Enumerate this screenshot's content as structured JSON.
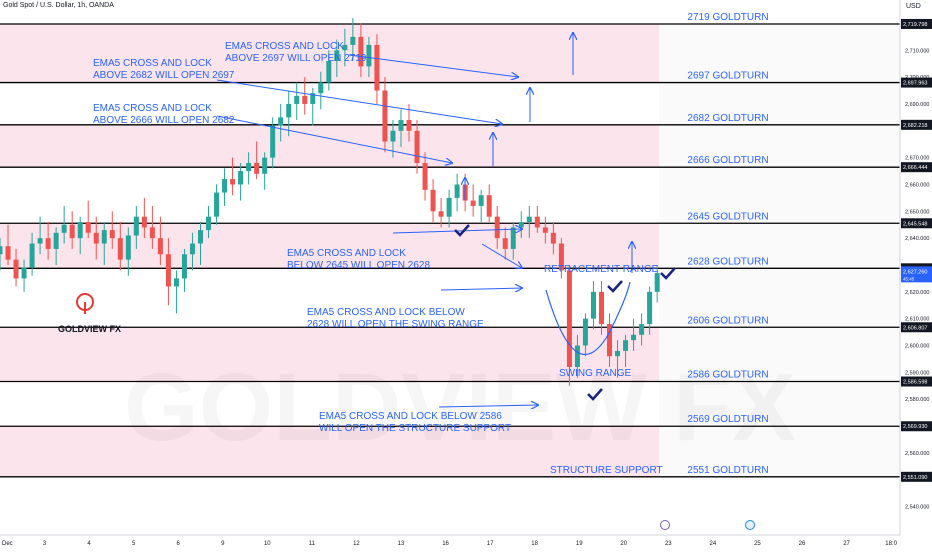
{
  "header": {
    "symbol": "Gold Spot / U.S. Dollar, 1h, OANDA",
    "currency": "USD"
  },
  "logo": {
    "text": "GOLDVIEW FX",
    "watermark": "GOLDVIEW FX"
  },
  "colors": {
    "zone_fill": "#fce4ec",
    "level_line": "#000000",
    "annotation_blue": "#2962ff",
    "candle_up": "#26a69a",
    "candle_down": "#ef5350",
    "candle_dark": "#b71c1c",
    "price_tag": "#2962ff",
    "logo_red": "#e53935"
  },
  "chart_data": {
    "type": "candlestick",
    "title": "Gold Spot / U.S. Dollar, 1h, OANDA",
    "ylim": [
      2535,
      2725
    ],
    "y_ticks": [
      "2,720.000",
      "2,710.000",
      "2,700.000",
      "2,690.000",
      "2,670.000",
      "2,660.000",
      "2,650.000",
      "2,640.000",
      "2,620.000",
      "2,610.000",
      "2,600.000",
      "2,590.000",
      "2,580.000",
      "2,560.000",
      "2,550.000",
      "2,540.000"
    ],
    "x_ticks": [
      {
        "label": "Dec",
        "x": 0
      },
      {
        "label": "3",
        "x": 1
      },
      {
        "label": "4",
        "x": 2
      },
      {
        "label": "5",
        "x": 3
      },
      {
        "label": "6",
        "x": 4
      },
      {
        "label": "9",
        "x": 5
      },
      {
        "label": "10",
        "x": 6
      },
      {
        "label": "11",
        "x": 7
      },
      {
        "label": "12",
        "x": 8
      },
      {
        "label": "13",
        "x": 9
      },
      {
        "label": "16",
        "x": 10
      },
      {
        "label": "17",
        "x": 11
      },
      {
        "label": "18",
        "x": 12
      },
      {
        "label": "19",
        "x": 13
      },
      {
        "label": "20",
        "x": 14
      },
      {
        "label": "23",
        "x": 15
      },
      {
        "label": "24",
        "x": 16
      },
      {
        "label": "25",
        "x": 17
      },
      {
        "label": "26",
        "x": 18
      },
      {
        "label": "27",
        "x": 19
      },
      {
        "label": "18:0",
        "x": 20
      }
    ],
    "x_range": [
      0,
      20.2
    ],
    "last_data_x": 14.75,
    "levels": [
      {
        "price": 2719.798,
        "label": "2719 GOLDTURN",
        "tag": "2,719.798"
      },
      {
        "price": 2697.963,
        "label": "2697 GOLDTURN",
        "tag": "2,697.963"
      },
      {
        "price": 2682.218,
        "label": "2682 GOLDTURN",
        "tag": "2,682.218"
      },
      {
        "price": 2666.444,
        "label": "2666 GOLDTURN",
        "tag": "2,666.444"
      },
      {
        "price": 2645.548,
        "label": "2645 GOLDTURN",
        "tag": "2,645.548"
      },
      {
        "price": 2628.767,
        "label": "2628 GOLDTURN",
        "tag": "2,628.767"
      },
      {
        "price": 2606.807,
        "label": "2606 GOLDTURN",
        "tag": "2,606.807"
      },
      {
        "price": 2586.598,
        "label": "2586 GOLDTURN",
        "tag": "2,586.598"
      },
      {
        "price": 2569.93,
        "label": "2569 GOLDTURN",
        "tag": "2,569.930"
      },
      {
        "price": 2551.09,
        "label": "2551 GOLDTURN",
        "tag": "2,551.090"
      }
    ],
    "zones": [
      [
        2697.963,
        2719.798
      ],
      [
        2666.444,
        2682.218
      ],
      [
        2628.767,
        2645.548
      ],
      [
        2586.598,
        2606.807
      ],
      [
        2551.09,
        2569.93
      ]
    ],
    "current_price": {
      "price": 2627.26,
      "tag": "2,627.260",
      "sub": "45:45"
    },
    "candles": [
      [
        0.0,
        2634,
        2640,
        2628,
        2637
      ],
      [
        0.18,
        2637,
        2645,
        2630,
        2632
      ],
      [
        0.36,
        2632,
        2636,
        2622,
        2625
      ],
      [
        0.54,
        2625,
        2632,
        2620,
        2629
      ],
      [
        0.72,
        2629,
        2642,
        2626,
        2638
      ],
      [
        0.9,
        2638,
        2648,
        2634,
        2640
      ],
      [
        1.08,
        2640,
        2646,
        2632,
        2636
      ],
      [
        1.26,
        2636,
        2644,
        2630,
        2642
      ],
      [
        1.44,
        2642,
        2652,
        2638,
        2645
      ],
      [
        1.62,
        2645,
        2650,
        2636,
        2640
      ],
      [
        1.8,
        2640,
        2648,
        2634,
        2646
      ],
      [
        1.98,
        2646,
        2654,
        2640,
        2642
      ],
      [
        2.16,
        2642,
        2648,
        2632,
        2638
      ],
      [
        2.34,
        2638,
        2646,
        2630,
        2643
      ],
      [
        2.52,
        2643,
        2650,
        2636,
        2640
      ],
      [
        2.7,
        2640,
        2646,
        2628,
        2632
      ],
      [
        2.88,
        2632,
        2644,
        2626,
        2641
      ],
      [
        3.06,
        2641,
        2652,
        2636,
        2648
      ],
      [
        3.24,
        2648,
        2655,
        2640,
        2644
      ],
      [
        3.42,
        2644,
        2652,
        2636,
        2640
      ],
      [
        3.6,
        2640,
        2648,
        2630,
        2634
      ],
      [
        3.78,
        2634,
        2640,
        2615,
        2622
      ],
      [
        3.96,
        2622,
        2628,
        2612,
        2625
      ],
      [
        4.14,
        2625,
        2636,
        2620,
        2634
      ],
      [
        4.32,
        2634,
        2642,
        2628,
        2638
      ],
      [
        4.5,
        2638,
        2646,
        2630,
        2643
      ],
      [
        4.68,
        2643,
        2652,
        2640,
        2648
      ],
      [
        4.86,
        2648,
        2660,
        2645,
        2657
      ],
      [
        5.04,
        2657,
        2666,
        2652,
        2662
      ],
      [
        5.22,
        2662,
        2670,
        2656,
        2660
      ],
      [
        5.4,
        2660,
        2668,
        2654,
        2665
      ],
      [
        5.58,
        2665,
        2672,
        2660,
        2668
      ],
      [
        5.76,
        2668,
        2676,
        2662,
        2664
      ],
      [
        5.94,
        2664,
        2672,
        2658,
        2670
      ],
      [
        6.12,
        2670,
        2685,
        2666,
        2682
      ],
      [
        6.3,
        2682,
        2690,
        2676,
        2685
      ],
      [
        6.48,
        2685,
        2695,
        2678,
        2690
      ],
      [
        6.66,
        2690,
        2698,
        2684,
        2693
      ],
      [
        6.84,
        2693,
        2700,
        2686,
        2690
      ],
      [
        7.02,
        2690,
        2696,
        2682,
        2694
      ],
      [
        7.2,
        2694,
        2702,
        2688,
        2698
      ],
      [
        7.38,
        2698,
        2710,
        2695,
        2706
      ],
      [
        7.56,
        2706,
        2714,
        2700,
        2710
      ],
      [
        7.74,
        2710,
        2718,
        2704,
        2712
      ],
      [
        7.92,
        2712,
        2722,
        2706,
        2715
      ],
      [
        8.1,
        2715,
        2720,
        2700,
        2704
      ],
      [
        8.28,
        2704,
        2715,
        2700,
        2712
      ],
      [
        8.46,
        2712,
        2716,
        2690,
        2695
      ],
      [
        8.64,
        2695,
        2700,
        2672,
        2676
      ],
      [
        8.82,
        2676,
        2684,
        2670,
        2680
      ],
      [
        9.0,
        2680,
        2688,
        2674,
        2684
      ],
      [
        9.18,
        2684,
        2690,
        2676,
        2680
      ],
      [
        9.36,
        2680,
        2684,
        2664,
        2668
      ],
      [
        9.54,
        2668,
        2672,
        2654,
        2658
      ],
      [
        9.72,
        2658,
        2662,
        2646,
        2650
      ],
      [
        9.9,
        2650,
        2655,
        2644,
        2648
      ],
      [
        10.08,
        2648,
        2658,
        2644,
        2655
      ],
      [
        10.26,
        2655,
        2664,
        2650,
        2660
      ],
      [
        10.44,
        2660,
        2664,
        2650,
        2654
      ],
      [
        10.62,
        2654,
        2660,
        2648,
        2652
      ],
      [
        10.8,
        2652,
        2658,
        2646,
        2656
      ],
      [
        10.98,
        2656,
        2660,
        2646,
        2648
      ],
      [
        11.16,
        2648,
        2652,
        2636,
        2640
      ],
      [
        11.34,
        2640,
        2644,
        2632,
        2636
      ],
      [
        11.52,
        2636,
        2646,
        2632,
        2644
      ],
      [
        11.7,
        2644,
        2650,
        2640,
        2646
      ],
      [
        11.88,
        2646,
        2652,
        2640,
        2648
      ],
      [
        12.06,
        2648,
        2652,
        2642,
        2644
      ],
      [
        12.24,
        2644,
        2648,
        2638,
        2642
      ],
      [
        12.42,
        2642,
        2646,
        2634,
        2638
      ],
      [
        12.6,
        2638,
        2640,
        2625,
        2628
      ],
      [
        12.78,
        2628,
        2630,
        2585,
        2592
      ],
      [
        12.96,
        2592,
        2604,
        2588,
        2600
      ],
      [
        13.14,
        2600,
        2612,
        2596,
        2610
      ],
      [
        13.32,
        2610,
        2624,
        2606,
        2620
      ],
      [
        13.5,
        2620,
        2624,
        2604,
        2608
      ],
      [
        13.68,
        2608,
        2612,
        2592,
        2596
      ],
      [
        13.86,
        2596,
        2602,
        2588,
        2598
      ],
      [
        14.04,
        2598,
        2604,
        2592,
        2602
      ],
      [
        14.22,
        2602,
        2610,
        2598,
        2604
      ],
      [
        14.4,
        2604,
        2612,
        2600,
        2608
      ],
      [
        14.58,
        2608,
        2622,
        2604,
        2620
      ],
      [
        14.75,
        2620,
        2630,
        2616,
        2627
      ]
    ]
  },
  "annotations": [
    {
      "line1": "EMA5 CROSS AND LOCK",
      "line2": "ABOVE 2697 WILL OPEN 2719"
    },
    {
      "line1": "EMA5 CROSS AND LOCK",
      "line2": "ABOVE 2682 WILL OPEN 2697"
    },
    {
      "line1": "EMA5 CROSS AND LOCK",
      "line2": "ABOVE 2666 WILL OPEN 2682"
    },
    {
      "line1": "EMA5 CROSS AND LOCK",
      "line2": "BELOW 2645 WILL OPEN 2628"
    },
    {
      "line1": "EMA5 CROSS AND LOCK BELOW",
      "line2": "2628 WILL OPEN THE SWING RANGE"
    },
    {
      "line1": "EMA5 CROSS AND LOCK BELOW 2586",
      "line2": "WILL OPEN THE STRUCTURE SUPPORT"
    }
  ],
  "labels": {
    "retracement": "RETRACEMENT RANGE",
    "swing": "SWING RANGE",
    "structure": "STRUCTURE SUPPORT"
  }
}
